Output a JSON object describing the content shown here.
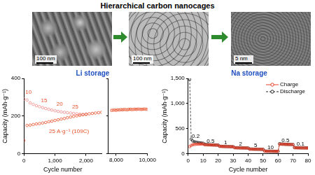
{
  "header": {
    "title": "Hierarchical carbon nanocages"
  },
  "images": [
    {
      "scale_bar": "100 nm"
    },
    {
      "scale_bar": "100 nm"
    },
    {
      "scale_bar": "5 nm"
    }
  ],
  "chart_data": [
    {
      "type": "scatter",
      "title": "Li storage",
      "x_label": "Cycle number",
      "y_label": "Capacity (mAh·g⁻¹)",
      "xlim": [
        0,
        2500
      ],
      "xticks": [
        0,
        {
          "value": 1000,
          "label": "1,000"
        },
        {
          "value": 2000,
          "label": "2,000"
        }
      ],
      "ylim": [
        0,
        400
      ],
      "yticks": [
        0,
        200,
        400
      ],
      "grid": false,
      "series": [
        {
          "color": "#e8502a",
          "marker": "circle",
          "x": [
            0,
            100,
            200,
            300,
            400,
            500,
            600,
            700,
            800,
            900,
            1000,
            1100,
            1200,
            1300,
            1400,
            1500,
            1600,
            1700,
            1800,
            1900,
            2000,
            2100,
            2200,
            2300,
            2400,
            2500
          ],
          "values": [
            70,
            150,
            152,
            155,
            158,
            160,
            163,
            166,
            170,
            173,
            177,
            180,
            184,
            187,
            191,
            195,
            198,
            201,
            204,
            207,
            210,
            212,
            214,
            216,
            218,
            220
          ]
        },
        {
          "color": "#f08a8a",
          "marker": "circle",
          "x": [
            0,
            100,
            200,
            300,
            400,
            500,
            600,
            700,
            800,
            900,
            1000,
            1100,
            1200,
            1300,
            1400,
            1500,
            1600,
            1700,
            1800,
            1900,
            2000
          ],
          "values": [
            290,
            285,
            270,
            262,
            255,
            250,
            245,
            240,
            236,
            232,
            228,
            225,
            222,
            220,
            218,
            216,
            214,
            212,
            210,
            209,
            208
          ]
        }
      ],
      "annotations": [
        {
          "text": "10",
          "x": 150,
          "y": 325
        },
        {
          "text": "15",
          "x": 650,
          "y": 280
        },
        {
          "text": "20",
          "x": 1150,
          "y": 262
        },
        {
          "text": "25",
          "x": 1650,
          "y": 250
        },
        {
          "text": "25 A·g⁻¹ (109C)",
          "x": 1450,
          "y": 120
        }
      ]
    },
    {
      "type": "scatter",
      "xlim": [
        7500,
        10000
      ],
      "xticks": [
        {
          "value": 8000,
          "label": "8,000"
        },
        {
          "value": 10000,
          "label": "10,000"
        }
      ],
      "ylim": [
        0,
        400
      ],
      "yticks": [
        0,
        200,
        400
      ],
      "grid": false,
      "tick_labels": "x",
      "series": [
        {
          "color": "#e8502a",
          "marker": "circle",
          "x": [
            7700,
            7800,
            7900,
            8000,
            8100,
            8200,
            8300,
            8400,
            8500,
            8600,
            8700,
            8800,
            8900,
            9000,
            9100,
            9200,
            9300,
            9400,
            9500,
            9600,
            9700,
            9800,
            9900,
            10000
          ],
          "values": [
            230,
            231,
            232,
            230,
            233,
            232,
            234,
            233,
            235,
            234,
            233,
            235,
            236,
            234,
            235,
            236,
            235,
            237,
            236,
            235,
            236,
            237,
            236,
            235
          ]
        }
      ]
    },
    {
      "type": "line",
      "title": "Na storage",
      "x_label": "Cycle number",
      "y_label": "Capacity (mAh·g⁻¹)",
      "xlim": [
        0,
        80
      ],
      "xticks": [
        0,
        10,
        20,
        30,
        40,
        50,
        60,
        70,
        80
      ],
      "ylim": [
        0,
        1500
      ],
      "yticks": [
        0,
        500,
        {
          "value": 1000,
          "label": "1,000"
        },
        {
          "value": 1500,
          "label": "1,500"
        }
      ],
      "grid": false,
      "legend": "upper right",
      "x": [
        1,
        2,
        3,
        4,
        5,
        6,
        7,
        8,
        9,
        10,
        11,
        12,
        13,
        14,
        15,
        16,
        17,
        18,
        19,
        20,
        21,
        22,
        23,
        24,
        25,
        26,
        27,
        28,
        29,
        30,
        31,
        32,
        33,
        34,
        35,
        36,
        37,
        38,
        39,
        40,
        41,
        42,
        43,
        44,
        45,
        46,
        47,
        48,
        49,
        50,
        51,
        52,
        53,
        54,
        55,
        56,
        57,
        58,
        59,
        60,
        61,
        62,
        63,
        64,
        65,
        66,
        67,
        68,
        69,
        70,
        71,
        72,
        73,
        74,
        75,
        76,
        77,
        78,
        79,
        80
      ],
      "series": [
        {
          "name": "Charge",
          "color": "#e8402a",
          "marker": "circle",
          "line_style": "solid",
          "values": [
            140,
            165,
            178,
            185,
            188,
            190,
            192,
            192,
            193,
            193,
            178,
            178,
            176,
            175,
            174,
            173,
            172,
            171,
            170,
            170,
            146,
            145,
            144,
            143,
            142,
            141,
            140,
            140,
            139,
            139,
            118,
            117,
            116,
            115,
            115,
            114,
            114,
            113,
            113,
            112,
            92,
            91,
            90,
            89,
            89,
            88,
            88,
            87,
            87,
            87,
            52,
            50,
            49,
            48,
            48,
            47,
            47,
            47,
            46,
            46,
            190,
            190,
            188,
            187,
            186,
            185,
            184,
            184,
            183,
            182,
            118,
            117,
            116,
            116,
            115,
            115,
            114,
            114,
            113,
            113
          ]
        },
        {
          "name": "Discharge",
          "color": "#222222",
          "marker": "circle",
          "line_style": "dashed",
          "values": [
            1480,
            290,
            255,
            240,
            232,
            226,
            220,
            216,
            212,
            208,
            190,
            185,
            182,
            180,
            178,
            176,
            175,
            174,
            173,
            172,
            150,
            148,
            146,
            145,
            144,
            143,
            142,
            141,
            140,
            140,
            122,
            120,
            119,
            118,
            117,
            116,
            116,
            115,
            115,
            114,
            95,
            93,
            92,
            91,
            90,
            90,
            89,
            89,
            88,
            88,
            55,
            52,
            50,
            50,
            49,
            49,
            48,
            48,
            48,
            47,
            200,
            195,
            192,
            190,
            188,
            187,
            186,
            185,
            184,
            183,
            125,
            122,
            120,
            119,
            118,
            118,
            117,
            117,
            116,
            116
          ]
        }
      ],
      "annotations": [
        {
          "text": "0.2",
          "x": 5,
          "y": 340
        },
        {
          "text": "0.5",
          "x": 15,
          "y": 255
        },
        {
          "text": "1",
          "x": 25,
          "y": 215
        },
        {
          "text": "2",
          "x": 35,
          "y": 190
        },
        {
          "text": "5",
          "x": 45,
          "y": 165
        },
        {
          "text": "10",
          "x": 55,
          "y": 125
        },
        {
          "text": "0.5",
          "x": 65,
          "y": 265
        },
        {
          "text": "0.1",
          "x": 75,
          "y": 195
        }
      ]
    }
  ]
}
